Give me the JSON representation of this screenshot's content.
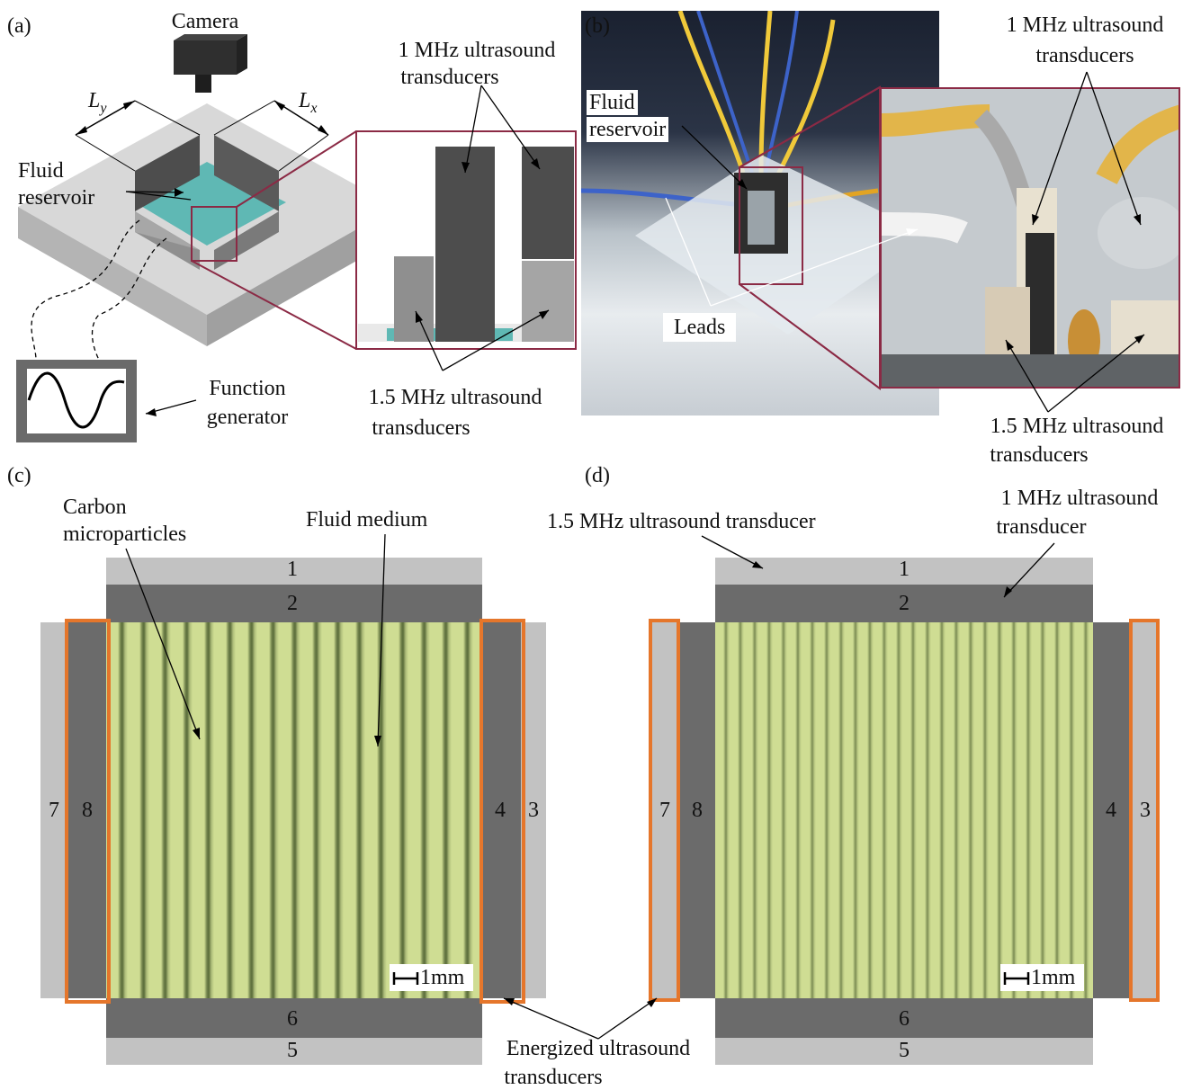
{
  "panels": {
    "a": {
      "letter": "(a)",
      "camera": "Camera",
      "ly": "L",
      "ly_sub": "y",
      "lx": "L",
      "lx_sub": "x",
      "fluid_reservoir": [
        "Fluid",
        "reservoir"
      ],
      "t1mhz": [
        "1 MHz ultrasound",
        "transducers"
      ],
      "t15mhz": [
        "1.5 MHz ultrasound",
        "transducers"
      ],
      "function_generator": [
        "Function",
        "generator"
      ]
    },
    "b": {
      "letter": "(b)",
      "fluid_reservoir": [
        "Fluid",
        "reservoir"
      ],
      "t1mhz": [
        "1 MHz ultrasound",
        "transducers"
      ],
      "leads": "Leads",
      "t15mhz": [
        "1.5 MHz ultrasound",
        "transducers"
      ]
    },
    "c": {
      "letter": "(c)",
      "carbon": [
        "Carbon",
        "microparticles"
      ],
      "fluid_medium": "Fluid medium",
      "scale": "1mm",
      "numbers": [
        "1",
        "2",
        "3",
        "4",
        "5",
        "6",
        "7",
        "8"
      ]
    },
    "d": {
      "letter": "(d)",
      "t15": "1.5 MHz ultrasound transducer",
      "t1": [
        "1 MHz ultrasound",
        "transducer"
      ],
      "scale": "1mm",
      "numbers": [
        "1",
        "2",
        "3",
        "4",
        "5",
        "6",
        "7",
        "8"
      ]
    },
    "shared": {
      "energized": [
        "Energized ultrasound",
        "transducers"
      ]
    }
  },
  "colors": {
    "light_transducer": "#c2c2c2",
    "dark_transducer": "#6b6b6b",
    "energized_outline": "#e5762b",
    "fluid_green": "#c8d98a",
    "maroon": "#8b2a45"
  }
}
